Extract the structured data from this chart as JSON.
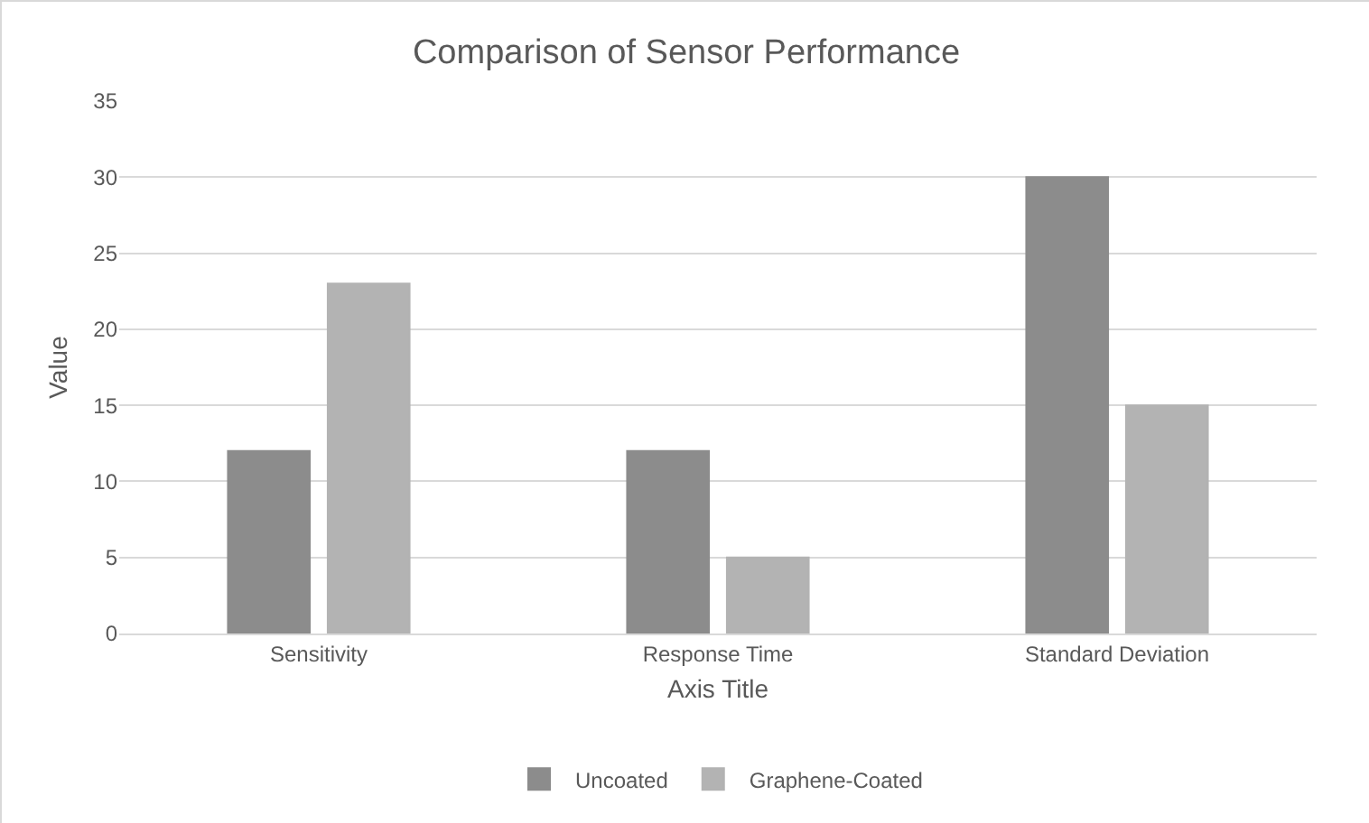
{
  "chart_data": {
    "type": "bar",
    "title": "Comparison of Sensor Performance",
    "xlabel": "Axis Title",
    "ylabel": "Value",
    "categories": [
      "Sensitivity",
      "Response Time",
      "Standard Deviation"
    ],
    "series": [
      {
        "name": "Uncoated",
        "color": "#8c8c8c",
        "values": [
          12,
          12,
          30
        ]
      },
      {
        "name": "Graphene-Coated",
        "color": "#b3b3b3",
        "values": [
          23,
          5,
          15
        ]
      }
    ],
    "ylim": [
      0,
      35
    ],
    "yticks": [
      0,
      5,
      10,
      15,
      20,
      25,
      30,
      35
    ],
    "grid": "y",
    "legend": "bottom"
  }
}
